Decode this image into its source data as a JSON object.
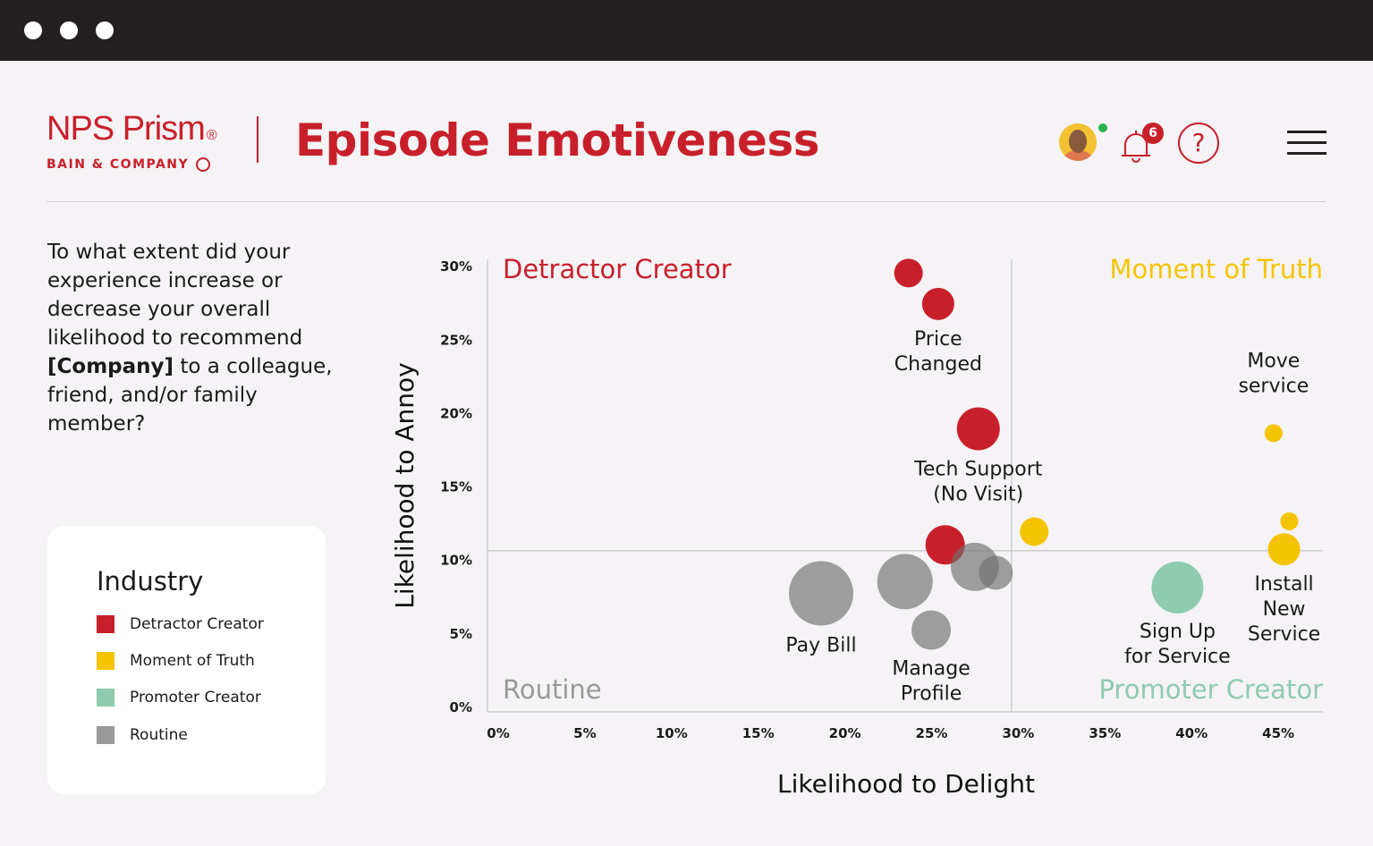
{
  "window": {
    "controls": [
      "close",
      "minimize",
      "maximize"
    ]
  },
  "header": {
    "logo_brand": "NPS Prism",
    "logo_registered": "®",
    "logo_sub": "BAIN & COMPANY",
    "title": "Episode Emotiveness",
    "notification_count": "6",
    "help_label": "?",
    "icons": [
      "avatar",
      "online-status-dot",
      "bell-icon",
      "help-icon",
      "hamburger-menu-icon"
    ]
  },
  "question": {
    "before": "To what extent did your experience increase or decrease your overall likelihood to recommend ",
    "bold": "[Company]",
    "after": " to a colleague, friend, and/or family member?"
  },
  "legend": {
    "title": "Industry",
    "items": [
      {
        "label": "Detractor Creator",
        "color": "#c8202a"
      },
      {
        "label": "Moment of Truth",
        "color": "#f5c400"
      },
      {
        "label": "Promoter Creator",
        "color": "#8ecbb0"
      },
      {
        "label": "Routine",
        "color": "#999999"
      }
    ]
  },
  "chart_data": {
    "type": "scatter",
    "subtype": "bubble",
    "xlabel": "Likelihood to Delight",
    "ylabel": "Likelihood to Annoy",
    "xlim": [
      0,
      47
    ],
    "ylim": [
      0,
      30
    ],
    "x_ticks": [
      "0%",
      "5%",
      "10%",
      "15%",
      "20%",
      "25%",
      "30%",
      "35%",
      "40%",
      "45%"
    ],
    "y_ticks": [
      "0%",
      "5%",
      "10%",
      "15%",
      "20%",
      "25%",
      "30%"
    ],
    "x_threshold": 30,
    "y_threshold": 10.6,
    "grid": false,
    "quadrants": {
      "top_left": {
        "label": "Detractor Creator",
        "color": "#c8202a"
      },
      "top_right": {
        "label": "Moment of Truth",
        "color": "#f5c400"
      },
      "bottom_left": {
        "label": "Routine",
        "color": "#999999"
      },
      "bottom_right": {
        "label": "Promoter Creator",
        "color": "#8ecbb0"
      }
    },
    "points": [
      {
        "x": 24.1,
        "y": 29.5,
        "size": 16,
        "category": "Detractor Creator",
        "label": []
      },
      {
        "x": 25.8,
        "y": 27.4,
        "size": 18,
        "category": "Detractor Creator",
        "label": [
          "Price",
          "Changed"
        ]
      },
      {
        "x": 28.1,
        "y": 18.9,
        "size": 24,
        "category": "Detractor Creator",
        "label": [
          "Tech Support",
          "(No Visit)"
        ]
      },
      {
        "x": 26.2,
        "y": 11.0,
        "size": 22,
        "category": "Detractor Creator",
        "label": []
      },
      {
        "x": 31.3,
        "y": 11.9,
        "size": 16,
        "category": "Moment of Truth",
        "label": []
      },
      {
        "x": 45.0,
        "y": 18.6,
        "size": 10,
        "category": "Moment of Truth",
        "label": [
          "Move",
          "service"
        ]
      },
      {
        "x": 45.9,
        "y": 12.6,
        "size": 10,
        "category": "Moment of Truth",
        "label": []
      },
      {
        "x": 45.6,
        "y": 10.7,
        "size": 18,
        "category": "Moment of Truth",
        "label": [
          "Install",
          "New",
          "Service"
        ]
      },
      {
        "x": 39.5,
        "y": 8.1,
        "size": 29,
        "category": "Promoter Creator",
        "label": [
          "Sign Up",
          "for Service"
        ]
      },
      {
        "x": 19.1,
        "y": 7.7,
        "size": 36,
        "category": "Routine",
        "label": [
          "Pay Bill"
        ]
      },
      {
        "x": 23.9,
        "y": 8.5,
        "size": 31,
        "category": "Routine",
        "label": []
      },
      {
        "x": 27.9,
        "y": 9.5,
        "size": 27,
        "category": "Routine",
        "label": []
      },
      {
        "x": 29.1,
        "y": 9.1,
        "size": 19,
        "category": "Routine",
        "label": []
      },
      {
        "x": 25.4,
        "y": 5.2,
        "size": 22,
        "category": "Routine",
        "label": [
          "Manage",
          "Profile"
        ]
      }
    ]
  }
}
